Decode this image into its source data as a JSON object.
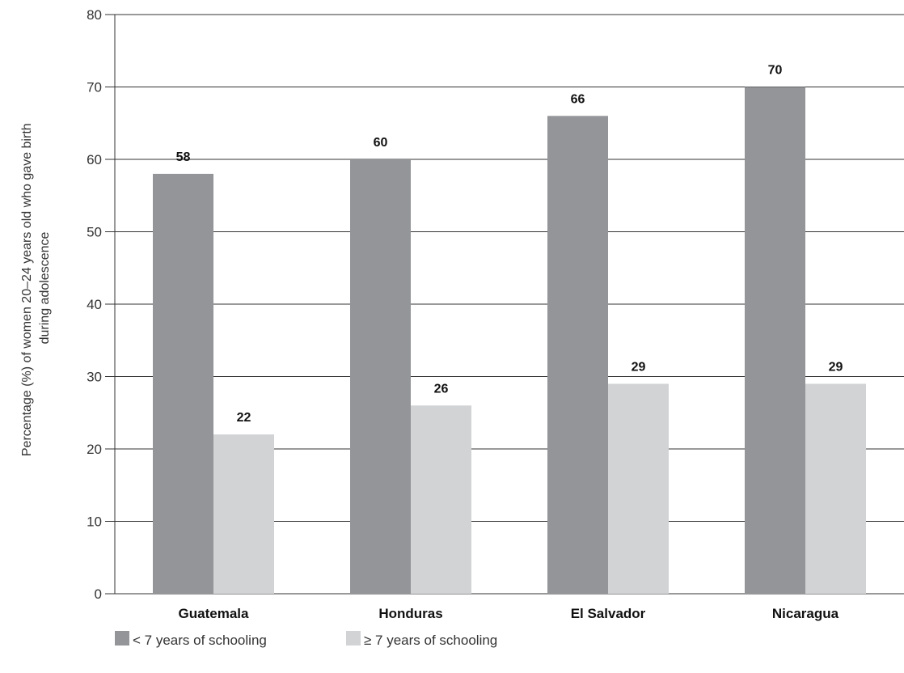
{
  "chart_data": {
    "type": "bar",
    "title": "",
    "xlabel": "",
    "ylabel": [
      "Percentage (%) of women 20–24 years old who gave birth",
      "during adolescence"
    ],
    "ylim": [
      0,
      80
    ],
    "yticks": [
      0,
      10,
      20,
      30,
      40,
      50,
      60,
      70,
      80
    ],
    "grid": true,
    "legend_position": "bottom-left",
    "categories": [
      "Guatemala",
      "Honduras",
      "El Salvador",
      "Nicaragua"
    ],
    "series": [
      {
        "name": "< 7 years of schooling",
        "values": [
          58,
          60,
          66,
          70
        ],
        "color": "#939598"
      },
      {
        "name": "≥ 7 years of schooling",
        "values": [
          22,
          26,
          29,
          29
        ],
        "color": "#d1d3d4"
      }
    ]
  }
}
